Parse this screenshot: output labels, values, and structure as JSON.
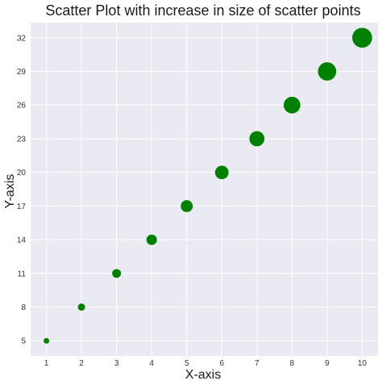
{
  "chart_data": {
    "type": "scatter",
    "title": "Scatter Plot with increase in size of scatter points",
    "xlabel": "X-axis",
    "ylabel": "Y-axis",
    "x": [
      1,
      2,
      3,
      4,
      5,
      6,
      7,
      8,
      9,
      10
    ],
    "y": [
      5,
      8,
      11,
      14,
      17,
      20,
      23,
      26,
      29,
      32
    ],
    "sizes": [
      1,
      2,
      3,
      4,
      5,
      6,
      7,
      8,
      9,
      10
    ],
    "x_ticks": [
      "1",
      "2",
      "3",
      "4",
      "5",
      "6",
      "7",
      "8",
      "9",
      "10"
    ],
    "y_ticks": [
      "5",
      "8",
      "11",
      "14",
      "17",
      "20",
      "23",
      "26",
      "29",
      "32"
    ],
    "xlim": [
      0.55,
      10.45
    ],
    "ylim": [
      3.65,
      33.35
    ],
    "grid": true,
    "marker_color": "#008000",
    "background_color": "#eaeaf2",
    "grid_color": "#ffffff"
  }
}
